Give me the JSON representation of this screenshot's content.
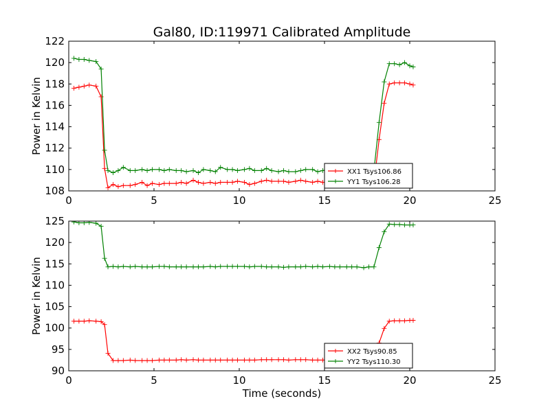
{
  "figure": {
    "title": "Gal80, ID:119971 Calibrated Amplitude",
    "xlabel": "Time (seconds)"
  },
  "chart_data": [
    {
      "type": "line",
      "ylabel": "Power in Kelvin",
      "xlim": [
        0,
        25
      ],
      "ylim": [
        108,
        122
      ],
      "xticks": [
        "0",
        "5",
        "10",
        "15",
        "20",
        "25"
      ],
      "yticks": [
        "108",
        "110",
        "112",
        "114",
        "116",
        "118",
        "120",
        "122"
      ],
      "legend_position": "lower-right",
      "series": [
        {
          "name": "XX1 Tsys106.86",
          "color": "#ff0000",
          "x": [
            0.3,
            0.6,
            0.9,
            1.2,
            1.6,
            1.9,
            2.1,
            2.3,
            2.6,
            2.9,
            3.2,
            3.6,
            3.9,
            4.3,
            4.6,
            4.9,
            5.3,
            5.6,
            5.9,
            6.3,
            6.6,
            6.9,
            7.3,
            7.6,
            7.9,
            8.3,
            8.6,
            8.9,
            9.3,
            9.6,
            9.9,
            10.3,
            10.6,
            10.9,
            11.3,
            11.6,
            11.9,
            12.3,
            12.6,
            12.9,
            13.3,
            13.6,
            13.9,
            14.3,
            14.6,
            14.9,
            15.3,
            15.6,
            15.9,
            16.3,
            16.6,
            16.9,
            17.3,
            17.6,
            17.9,
            18.2,
            18.5,
            18.8,
            19.1,
            19.4,
            19.7,
            20.0,
            20.2
          ],
          "values": [
            117.6,
            117.7,
            117.8,
            117.9,
            117.8,
            116.8,
            110.1,
            108.3,
            108.6,
            108.4,
            108.5,
            108.5,
            108.6,
            108.8,
            108.5,
            108.7,
            108.6,
            108.7,
            108.7,
            108.7,
            108.8,
            108.7,
            109.0,
            108.8,
            108.7,
            108.8,
            108.7,
            108.8,
            108.8,
            108.8,
            108.9,
            108.8,
            108.6,
            108.7,
            108.9,
            109.0,
            108.9,
            108.9,
            108.9,
            108.8,
            108.9,
            109.0,
            108.9,
            108.8,
            108.9,
            108.8,
            108.8,
            108.7,
            108.8,
            108.8,
            108.7,
            109.0,
            108.8,
            108.7,
            108.7,
            112.8,
            116.2,
            118.0,
            118.1,
            118.1,
            118.1,
            118.0,
            117.9
          ]
        },
        {
          "name": "YY1 Tsys106.28",
          "color": "#008000",
          "x": [
            0.3,
            0.6,
            0.9,
            1.2,
            1.6,
            1.9,
            2.1,
            2.3,
            2.6,
            2.9,
            3.2,
            3.6,
            3.9,
            4.3,
            4.6,
            4.9,
            5.3,
            5.6,
            5.9,
            6.3,
            6.6,
            6.9,
            7.3,
            7.6,
            7.9,
            8.3,
            8.6,
            8.9,
            9.3,
            9.6,
            9.9,
            10.3,
            10.6,
            10.9,
            11.3,
            11.6,
            11.9,
            12.3,
            12.6,
            12.9,
            13.3,
            13.6,
            13.9,
            14.3,
            14.6,
            14.9,
            15.3,
            15.6,
            15.9,
            16.3,
            16.6,
            16.9,
            17.3,
            17.6,
            17.9,
            18.2,
            18.5,
            18.8,
            19.1,
            19.4,
            19.7,
            20.0,
            20.2
          ],
          "values": [
            120.4,
            120.3,
            120.3,
            120.2,
            120.1,
            119.4,
            111.8,
            109.9,
            109.7,
            109.9,
            110.2,
            109.9,
            109.9,
            110.0,
            109.9,
            110.0,
            110.0,
            109.9,
            110.0,
            109.9,
            109.9,
            109.8,
            109.9,
            109.7,
            110.0,
            109.9,
            109.8,
            110.2,
            110.0,
            110.0,
            109.9,
            110.0,
            110.1,
            109.9,
            109.9,
            110.1,
            109.9,
            109.8,
            109.9,
            109.8,
            109.8,
            109.9,
            110.0,
            110.0,
            109.8,
            109.9,
            110.0,
            109.9,
            109.9,
            109.9,
            109.8,
            109.9,
            109.9,
            109.8,
            109.9,
            114.4,
            118.2,
            119.9,
            119.9,
            119.8,
            120.0,
            119.7,
            119.6
          ]
        }
      ]
    },
    {
      "type": "line",
      "ylabel": "Power in Kelvin",
      "xlabel": "Time (seconds)",
      "xlim": [
        0,
        25
      ],
      "ylim": [
        90,
        125
      ],
      "xticks": [
        "0",
        "5",
        "10",
        "15",
        "20",
        "25"
      ],
      "yticks": [
        "90",
        "95",
        "100",
        "105",
        "110",
        "115",
        "120",
        "125"
      ],
      "legend_position": "lower-right",
      "series": [
        {
          "name": "XX2 Tsys90.85",
          "color": "#ff0000",
          "x": [
            0.3,
            0.6,
            0.9,
            1.2,
            1.6,
            1.9,
            2.1,
            2.3,
            2.6,
            2.9,
            3.2,
            3.6,
            3.9,
            4.3,
            4.6,
            4.9,
            5.3,
            5.6,
            5.9,
            6.3,
            6.6,
            6.9,
            7.3,
            7.6,
            7.9,
            8.3,
            8.6,
            8.9,
            9.3,
            9.6,
            9.9,
            10.3,
            10.6,
            10.9,
            11.3,
            11.6,
            11.9,
            12.3,
            12.6,
            12.9,
            13.3,
            13.6,
            13.9,
            14.3,
            14.6,
            14.9,
            15.3,
            15.6,
            15.9,
            16.3,
            16.6,
            16.9,
            17.3,
            17.6,
            17.9,
            18.2,
            18.5,
            18.8,
            19.1,
            19.4,
            19.7,
            20.0,
            20.2
          ],
          "values": [
            101.6,
            101.6,
            101.6,
            101.7,
            101.6,
            101.5,
            100.8,
            94.1,
            92.4,
            92.4,
            92.4,
            92.5,
            92.4,
            92.4,
            92.4,
            92.4,
            92.5,
            92.5,
            92.5,
            92.5,
            92.6,
            92.5,
            92.6,
            92.5,
            92.5,
            92.5,
            92.5,
            92.5,
            92.5,
            92.5,
            92.5,
            92.5,
            92.5,
            92.5,
            92.6,
            92.6,
            92.6,
            92.6,
            92.6,
            92.5,
            92.6,
            92.6,
            92.6,
            92.5,
            92.5,
            92.5,
            92.5,
            92.6,
            92.5,
            92.6,
            92.6,
            92.6,
            92.6,
            92.5,
            92.5,
            96.5,
            99.9,
            101.6,
            101.7,
            101.7,
            101.7,
            101.8,
            101.8
          ]
        },
        {
          "name": "YY2 Tsys110.30",
          "color": "#008000",
          "x": [
            0.3,
            0.6,
            0.9,
            1.2,
            1.6,
            1.9,
            2.1,
            2.3,
            2.6,
            2.9,
            3.2,
            3.6,
            3.9,
            4.3,
            4.6,
            4.9,
            5.3,
            5.6,
            5.9,
            6.3,
            6.6,
            6.9,
            7.3,
            7.6,
            7.9,
            8.3,
            8.6,
            8.9,
            9.3,
            9.6,
            9.9,
            10.3,
            10.6,
            10.9,
            11.3,
            11.6,
            11.9,
            12.3,
            12.6,
            12.9,
            13.3,
            13.6,
            13.9,
            14.3,
            14.6,
            14.9,
            15.3,
            15.6,
            15.9,
            16.3,
            16.6,
            16.9,
            17.3,
            17.6,
            17.9,
            18.2,
            18.5,
            18.8,
            19.1,
            19.4,
            19.7,
            20.0,
            20.2
          ],
          "values": [
            124.8,
            124.6,
            124.6,
            124.7,
            124.5,
            123.8,
            116.3,
            114.3,
            114.4,
            114.3,
            114.4,
            114.3,
            114.4,
            114.3,
            114.3,
            114.3,
            114.4,
            114.4,
            114.3,
            114.3,
            114.3,
            114.3,
            114.3,
            114.3,
            114.3,
            114.4,
            114.3,
            114.4,
            114.4,
            114.4,
            114.4,
            114.4,
            114.3,
            114.4,
            114.4,
            114.3,
            114.3,
            114.3,
            114.2,
            114.3,
            114.3,
            114.3,
            114.4,
            114.3,
            114.4,
            114.3,
            114.4,
            114.3,
            114.3,
            114.3,
            114.3,
            114.3,
            114.1,
            114.3,
            114.3,
            118.8,
            122.5,
            124.3,
            124.2,
            124.2,
            124.1,
            124.1,
            124.1
          ]
        }
      ]
    }
  ]
}
